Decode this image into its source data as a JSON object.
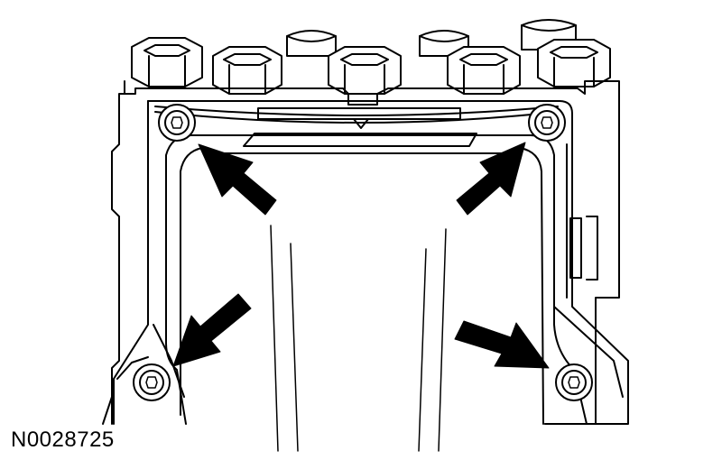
{
  "figure": {
    "reference_number": "N0028725"
  },
  "colors": {
    "line": "#000000",
    "fill": "#ffffff",
    "arrow": "#000000"
  },
  "icons": {
    "fastener": "torx-screw-icon",
    "pointer": "pointer-arrow-icon"
  },
  "fastener_count": 4
}
